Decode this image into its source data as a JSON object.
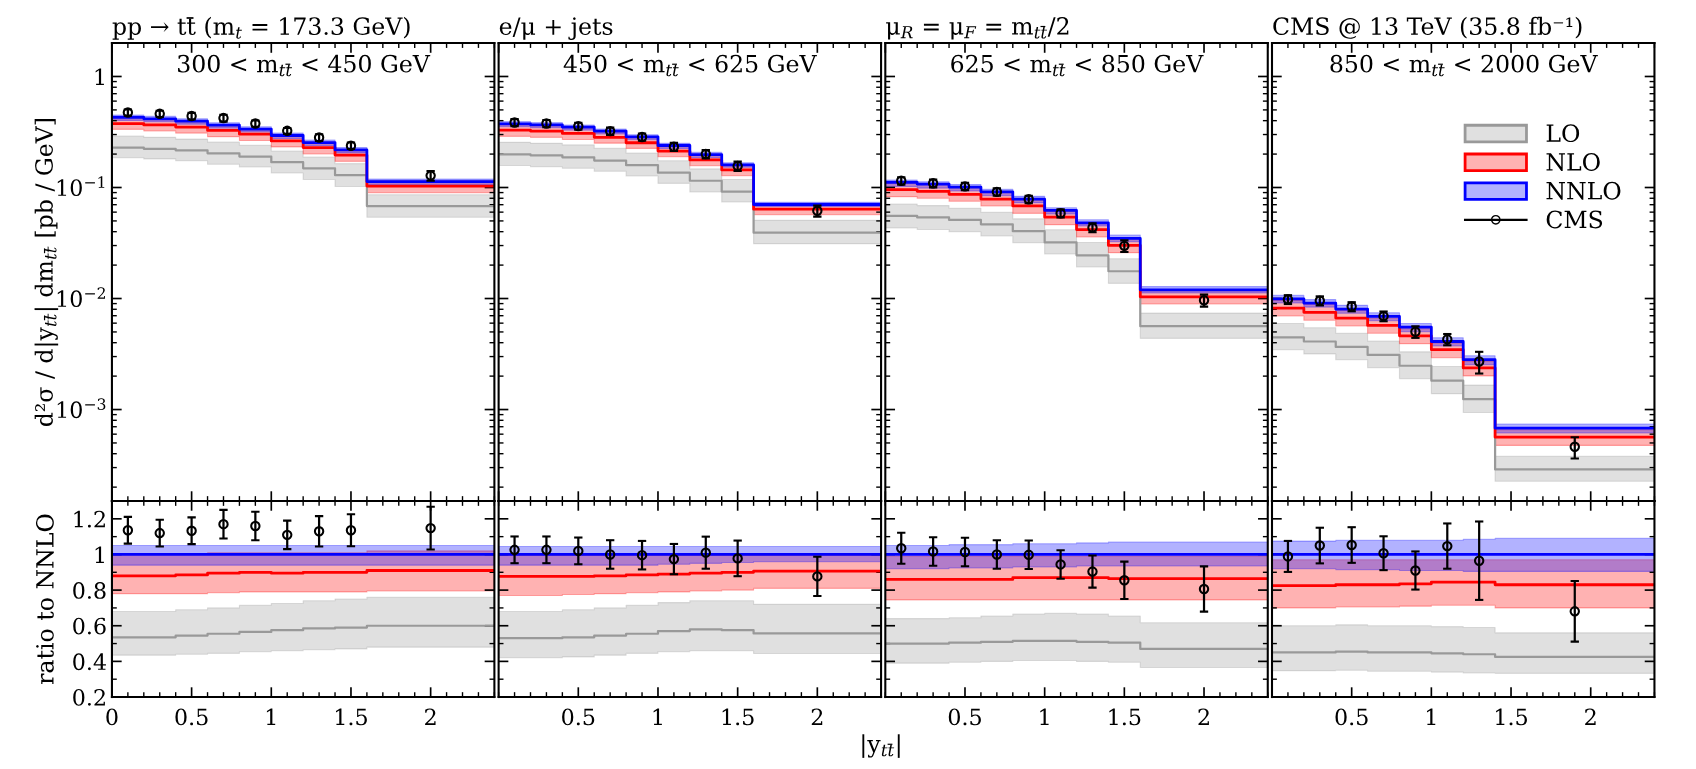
{
  "chart_data": [
    {
      "type": "step",
      "subtitle": "pp → tt̄ (m$_{t}$ = 173.3 GeV)",
      "title": "300 < m$_{tt̄}$ < 450 GeV",
      "ylabel": "d²σ / d|y$_{tt̄}$| dm$_{tt̄}$ [pb / GeV]",
      "log": "y",
      "xlim": [
        0,
        2.4
      ],
      "xticks": [
        0,
        0.5,
        1,
        1.5,
        2
      ],
      "ylim": [
        0.00015,
        2
      ],
      "yticks": [
        {
          "value": 0.001,
          "label": "10$^{−3}$"
        },
        {
          "value": 0.01,
          "label": "10$^{−2}$"
        },
        {
          "value": 0.1,
          "label": "10$^{−1}$"
        },
        {
          "value": 1,
          "label": "1"
        }
      ],
      "tick_labels": "y",
      "grid": false,
      "x": [
        0,
        0.2,
        0.4,
        0.6,
        0.8,
        1.0,
        1.2,
        1.4,
        1.6,
        2.4
      ],
      "series": [
        {
          "color": "#999999",
          "values": [
            0.229,
            0.223,
            0.216,
            0.203,
            0.19,
            0.169,
            0.149,
            0.129,
            0.068,
            0.068
          ],
          "lower": [
            0.186,
            0.181,
            0.174,
            0.162,
            0.153,
            0.135,
            0.118,
            0.102,
            0.054,
            0.054
          ],
          "upper": [
            0.291,
            0.283,
            0.273,
            0.256,
            0.24,
            0.213,
            0.188,
            0.164,
            0.086,
            0.086
          ]
        },
        {
          "color": "#ff0000",
          "values": [
            0.377,
            0.366,
            0.35,
            0.327,
            0.302,
            0.263,
            0.229,
            0.196,
            0.103,
            0.103
          ],
          "lower": [
            0.334,
            0.324,
            0.309,
            0.287,
            0.265,
            0.232,
            0.201,
            0.172,
            0.09,
            0.09
          ],
          "upper": [
            0.428,
            0.416,
            0.396,
            0.369,
            0.339,
            0.297,
            0.257,
            0.22,
            0.115,
            0.115
          ]
        },
        {
          "color": "#0000ff",
          "values": [
            0.428,
            0.416,
            0.396,
            0.365,
            0.336,
            0.294,
            0.254,
            0.218,
            0.113,
            0.113
          ],
          "lower": [
            0.402,
            0.391,
            0.372,
            0.343,
            0.316,
            0.276,
            0.239,
            0.205,
            0.106,
            0.106
          ],
          "upper": [
            0.449,
            0.437,
            0.416,
            0.383,
            0.353,
            0.309,
            0.267,
            0.229,
            0.119,
            0.119
          ]
        },
        {
          "type": "scatter",
          "color": "#000000",
          "marker": "circle",
          "x": [
            0.1,
            0.3,
            0.5,
            0.7,
            0.9,
            1.1,
            1.3,
            1.5,
            2.0
          ],
          "values": [
            0.474,
            0.461,
            0.44,
            0.422,
            0.377,
            0.324,
            0.282,
            0.238,
            0.128
          ],
          "errors": [
            0.03,
            0.03,
            0.03,
            0.03,
            0.025,
            0.02,
            0.02,
            0.016,
            0.013
          ]
        }
      ]
    },
    {
      "type": "step",
      "subtitle": "e/μ + jets",
      "title": "450 < m$_{tt̄}$ < 625 GeV",
      "log": "y",
      "xlim": [
        0,
        2.4
      ],
      "xticks": [
        0,
        0.5,
        1,
        1.5,
        2
      ],
      "ylim": [
        0.00015,
        2
      ],
      "yticks": [
        0.001,
        0.01,
        0.1,
        1
      ],
      "tick_labels": false,
      "grid": false,
      "x": [
        0,
        0.2,
        0.4,
        0.6,
        0.8,
        1.0,
        1.2,
        1.4,
        1.6,
        2.4
      ],
      "series": [
        {
          "color": "#999999",
          "values": [
            0.199,
            0.195,
            0.187,
            0.175,
            0.159,
            0.136,
            0.115,
            0.092,
            0.0392,
            0.0392
          ],
          "lower": [
            0.158,
            0.154,
            0.149,
            0.14,
            0.127,
            0.109,
            0.091,
            0.074,
            0.0312,
            0.0312
          ],
          "upper": [
            0.255,
            0.25,
            0.242,
            0.225,
            0.204,
            0.174,
            0.147,
            0.118,
            0.0506,
            0.0506
          ]
        },
        {
          "color": "#ff0000",
          "values": [
            0.329,
            0.322,
            0.307,
            0.283,
            0.253,
            0.213,
            0.177,
            0.144,
            0.0638,
            0.0638
          ],
          "lower": [
            0.289,
            0.283,
            0.271,
            0.251,
            0.225,
            0.189,
            0.157,
            0.128,
            0.0569,
            0.0569
          ],
          "upper": [
            0.373,
            0.365,
            0.348,
            0.321,
            0.285,
            0.238,
            0.197,
            0.159,
            0.07,
            0.07
          ]
        },
        {
          "color": "#0000ff",
          "values": [
            0.375,
            0.367,
            0.35,
            0.322,
            0.286,
            0.239,
            0.198,
            0.16,
            0.0703,
            0.0703
          ],
          "lower": [
            0.353,
            0.345,
            0.329,
            0.303,
            0.269,
            0.225,
            0.186,
            0.152,
            0.0675,
            0.0675
          ],
          "upper": [
            0.392,
            0.384,
            0.366,
            0.336,
            0.299,
            0.25,
            0.207,
            0.167,
            0.0735,
            0.0735
          ]
        },
        {
          "type": "scatter",
          "color": "#000000",
          "marker": "circle",
          "x": [
            0.1,
            0.3,
            0.5,
            0.7,
            0.9,
            1.1,
            1.3,
            1.5,
            2.0
          ],
          "values": [
            0.385,
            0.377,
            0.357,
            0.322,
            0.285,
            0.233,
            0.2,
            0.156,
            0.0617
          ],
          "errors": [
            0.028,
            0.028,
            0.026,
            0.024,
            0.021,
            0.02,
            0.017,
            0.015,
            0.007
          ]
        }
      ]
    },
    {
      "type": "step",
      "subtitle": "μ$_{R}$ = μ$_{F}$ = m$_{tt̄}$/2",
      "title": "625 < m$_{tt̄}$ < 850 GeV",
      "log": "y",
      "xlim": [
        0,
        2.4
      ],
      "xticks": [
        0,
        0.5,
        1,
        1.5,
        2
      ],
      "ylim": [
        0.00015,
        2
      ],
      "yticks": [
        0.001,
        0.01,
        0.1,
        1
      ],
      "tick_labels": false,
      "grid": false,
      "x": [
        0,
        0.2,
        0.4,
        0.6,
        0.8,
        1.0,
        1.2,
        1.4,
        1.6,
        2.4
      ],
      "series": [
        {
          "color": "#999999",
          "values": [
            0.0555,
            0.0537,
            0.051,
            0.0466,
            0.0404,
            0.032,
            0.0245,
            0.0176,
            0.00563,
            0.00563
          ],
          "lower": [
            0.0433,
            0.0419,
            0.0399,
            0.0366,
            0.0318,
            0.0252,
            0.0192,
            0.0137,
            0.00438,
            0.00438
          ],
          "upper": [
            0.071,
            0.0687,
            0.0651,
            0.0599,
            0.0522,
            0.0416,
            0.032,
            0.0228,
            0.00739,
            0.00739
          ]
        },
        {
          "color": "#ff0000",
          "values": [
            0.0955,
            0.0924,
            0.0868,
            0.0786,
            0.0683,
            0.054,
            0.0418,
            0.0301,
            0.01035,
            0.01035
          ],
          "lower": [
            0.0827,
            0.08,
            0.0752,
            0.0681,
            0.0585,
            0.0463,
            0.0358,
            0.0259,
            0.00892,
            0.00892
          ],
          "upper": [
            0.11,
            0.1063,
            0.0999,
            0.0905,
            0.0777,
            0.0615,
            0.0476,
            0.0345,
            0.01185,
            0.01185
          ]
        },
        {
          "color": "#0000ff",
          "values": [
            0.111,
            0.1074,
            0.1009,
            0.0914,
            0.0785,
            0.0621,
            0.0481,
            0.0348,
            0.01197,
            0.01197
          ],
          "lower": [
            0.102,
            0.0988,
            0.0933,
            0.0845,
            0.073,
            0.0578,
            0.045,
            0.0325,
            0.0112,
            0.0112
          ],
          "upper": [
            0.1166,
            0.1128,
            0.1065,
            0.0964,
            0.0832,
            0.0658,
            0.0512,
            0.0372,
            0.0128,
            0.0128
          ]
        },
        {
          "type": "scatter",
          "color": "#000000",
          "marker": "circle",
          "x": [
            0.1,
            0.3,
            0.5,
            0.7,
            0.9,
            1.1,
            1.3,
            1.5,
            2.0
          ],
          "values": [
            0.1149,
            0.1092,
            0.1023,
            0.0914,
            0.0783,
            0.0586,
            0.0435,
            0.0298,
            0.00965
          ],
          "errors": [
            0.009,
            0.009,
            0.008,
            0.007,
            0.006,
            0.005,
            0.004,
            0.0036,
            0.0012
          ]
        }
      ]
    },
    {
      "type": "step",
      "subtitle": "CMS @ 13 TeV (35.8 fb⁻¹)",
      "title": "850 < m$_{tt̄}$ < 2000 GeV",
      "log": "y",
      "xlim": [
        0,
        2.4
      ],
      "xticks": [
        0,
        0.5,
        1,
        1.5,
        2
      ],
      "ylim": [
        0.00015,
        2
      ],
      "yticks": [
        0.001,
        0.01,
        0.1,
        1
      ],
      "tick_labels": false,
      "grid": false,
      "legend": "top right",
      "x": [
        0,
        0.2,
        0.4,
        0.6,
        0.8,
        1.0,
        1.2,
        1.4,
        2.4
      ],
      "series": [
        {
          "name": "LO",
          "color": "#999999",
          "values": [
            0.00447,
            0.0041,
            0.00366,
            0.0031,
            0.00248,
            0.00182,
            0.00124,
            0.000289,
            0.000289
          ],
          "lower": [
            0.00346,
            0.00317,
            0.00281,
            0.00238,
            0.0019,
            0.00139,
            0.00094,
            0.000226,
            0.000226
          ],
          "upper": [
            0.00596,
            0.00546,
            0.00486,
            0.00413,
            0.00331,
            0.00244,
            0.00166,
            0.00038,
            0.00038
          ]
        },
        {
          "name": "NLO",
          "color": "#ff0000",
          "values": [
            0.00819,
            0.00751,
            0.00667,
            0.00572,
            0.00461,
            0.00346,
            0.00237,
            0.000564,
            0.000564
          ],
          "lower": [
            0.00695,
            0.00637,
            0.00567,
            0.00486,
            0.00392,
            0.00293,
            0.00201,
            0.000475,
            0.000475
          ],
          "upper": [
            0.00963,
            0.00883,
            0.0078,
            0.00668,
            0.00535,
            0.00398,
            0.00273,
            0.000659,
            0.000659
          ]
        },
        {
          "name": "NNLO",
          "color": "#0000ff",
          "values": [
            0.00993,
            0.0091,
            0.00804,
            0.00689,
            0.00552,
            0.0041,
            0.00281,
            0.000679,
            0.000679
          ],
          "lower": [
            0.00914,
            0.00837,
            0.00736,
            0.0063,
            0.00502,
            0.00373,
            0.00254,
            0.000615,
            0.000615
          ],
          "upper": [
            0.01067,
            0.00978,
            0.00868,
            0.00744,
            0.00596,
            0.00443,
            0.00305,
            0.00074,
            0.00074
          ]
        },
        {
          "name": "CMS",
          "type": "scatter",
          "color": "#000000",
          "marker": "circle",
          "x": [
            0.1,
            0.3,
            0.5,
            0.7,
            0.9,
            1.1,
            1.3,
            1.9
          ],
          "values": [
            0.00982,
            0.00956,
            0.00847,
            0.00694,
            0.00502,
            0.00429,
            0.00271,
            0.000462
          ],
          "errors": [
            0.0009,
            0.0009,
            0.0008,
            0.0007,
            0.0006,
            0.0005,
            0.0006,
            0.0001
          ]
        }
      ]
    },
    {
      "type": "step",
      "ylabel": "ratio to NNLO",
      "xlim": [
        0,
        2.4
      ],
      "xticks": [
        0,
        0.5,
        1,
        1.5,
        2
      ],
      "ylim": [
        0.2,
        1.3
      ],
      "yticks": [
        0.2,
        0.4,
        0.6,
        0.8,
        1,
        1.2
      ],
      "grid": false,
      "x": [
        0,
        0.2,
        0.4,
        0.6,
        0.8,
        1.0,
        1.2,
        1.4,
        1.6,
        2.4
      ],
      "series": [
        {
          "color": "#999999",
          "values": [
            0.535,
            0.535,
            0.545,
            0.555,
            0.565,
            0.575,
            0.585,
            0.59,
            0.6,
            0.6
          ],
          "lower": [
            0.435,
            0.435,
            0.44,
            0.445,
            0.455,
            0.46,
            0.465,
            0.47,
            0.48,
            0.48
          ],
          "upper": [
            0.68,
            0.68,
            0.69,
            0.7,
            0.715,
            0.725,
            0.74,
            0.75,
            0.76,
            0.76
          ]
        },
        {
          "color": "#ff0000",
          "values": [
            0.88,
            0.88,
            0.885,
            0.895,
            0.9,
            0.895,
            0.9,
            0.9,
            0.91,
            0.91
          ],
          "lower": [
            0.78,
            0.78,
            0.78,
            0.785,
            0.79,
            0.79,
            0.79,
            0.79,
            0.795,
            0.795
          ],
          "upper": [
            1.0,
            1.0,
            1.0,
            1.01,
            1.01,
            1.01,
            1.01,
            1.01,
            1.02,
            1.02
          ]
        },
        {
          "color": "#0000ff",
          "values": [
            1,
            1,
            1,
            1,
            1,
            1,
            1,
            1,
            1,
            1
          ],
          "lower": [
            0.94,
            0.94,
            0.94,
            0.94,
            0.94,
            0.94,
            0.94,
            0.94,
            0.94,
            0.94
          ],
          "upper": [
            1.05,
            1.05,
            1.05,
            1.05,
            1.05,
            1.05,
            1.05,
            1.05,
            1.05,
            1.05
          ]
        },
        {
          "type": "scatter",
          "color": "#000000",
          "marker": "circle",
          "x": [
            0.1,
            0.3,
            0.5,
            0.7,
            0.9,
            1.1,
            1.3,
            1.5,
            2.0
          ],
          "values": [
            1.136,
            1.12,
            1.133,
            1.17,
            1.16,
            1.11,
            1.13,
            1.136,
            1.148
          ],
          "errors": [
            0.075,
            0.075,
            0.075,
            0.08,
            0.08,
            0.08,
            0.085,
            0.09,
            0.12
          ]
        }
      ]
    },
    {
      "type": "step",
      "xlabel": "|y$_{tt̄}$|",
      "xlim": [
        0,
        2.4
      ],
      "xticks": [
        0.5,
        1,
        1.5,
        2
      ],
      "ylim": [
        0.2,
        1.3
      ],
      "yticks": [
        0.2,
        0.4,
        0.6,
        0.8,
        1,
        1.2
      ],
      "tick_labels": "x",
      "grid": false,
      "x": [
        0,
        0.2,
        0.4,
        0.6,
        0.8,
        1.0,
        1.2,
        1.4,
        1.6,
        2.4
      ],
      "series": [
        {
          "color": "#999999",
          "values": [
            0.53,
            0.53,
            0.535,
            0.545,
            0.555,
            0.57,
            0.58,
            0.575,
            0.557,
            0.557
          ],
          "lower": [
            0.42,
            0.42,
            0.425,
            0.435,
            0.445,
            0.455,
            0.46,
            0.46,
            0.444,
            0.444
          ],
          "upper": [
            0.68,
            0.68,
            0.69,
            0.7,
            0.715,
            0.73,
            0.74,
            0.74,
            0.72,
            0.72
          ]
        },
        {
          "color": "#ff0000",
          "values": [
            0.877,
            0.877,
            0.877,
            0.88,
            0.885,
            0.89,
            0.895,
            0.9,
            0.907,
            0.907
          ],
          "lower": [
            0.77,
            0.77,
            0.775,
            0.78,
            0.785,
            0.79,
            0.795,
            0.8,
            0.81,
            0.81
          ],
          "upper": [
            0.995,
            0.995,
            0.995,
            0.995,
            0.995,
            0.995,
            0.995,
            0.995,
            0.995,
            0.995
          ]
        },
        {
          "color": "#0000ff",
          "values": [
            1,
            1,
            1,
            1,
            1,
            1,
            1,
            1,
            1,
            1
          ],
          "lower": [
            0.94,
            0.94,
            0.94,
            0.94,
            0.94,
            0.945,
            0.95,
            0.955,
            0.96,
            0.96
          ],
          "upper": [
            1.045,
            1.045,
            1.045,
            1.045,
            1.045,
            1.045,
            1.045,
            1.045,
            1.045,
            1.045
          ]
        },
        {
          "type": "scatter",
          "color": "#000000",
          "marker": "circle",
          "x": [
            0.1,
            0.3,
            0.5,
            0.7,
            0.9,
            1.1,
            1.3,
            1.5,
            2.0
          ],
          "values": [
            1.026,
            1.026,
            1.02,
            1.0,
            0.996,
            0.974,
            1.01,
            0.978,
            0.877
          ],
          "errors": [
            0.075,
            0.075,
            0.075,
            0.08,
            0.08,
            0.085,
            0.09,
            0.1,
            0.11
          ]
        }
      ]
    },
    {
      "type": "step",
      "xlim": [
        0,
        2.4
      ],
      "xticks": [
        0.5,
        1,
        1.5,
        2
      ],
      "ylim": [
        0.2,
        1.3
      ],
      "yticks": [
        0.2,
        0.4,
        0.6,
        0.8,
        1,
        1.2
      ],
      "tick_labels": "x",
      "grid": false,
      "x": [
        0,
        0.2,
        0.4,
        0.6,
        0.8,
        1.0,
        1.2,
        1.4,
        1.6,
        2.4
      ],
      "series": [
        {
          "color": "#999999",
          "values": [
            0.5,
            0.5,
            0.505,
            0.51,
            0.515,
            0.515,
            0.51,
            0.505,
            0.47,
            0.47
          ],
          "lower": [
            0.39,
            0.39,
            0.395,
            0.4,
            0.405,
            0.405,
            0.4,
            0.395,
            0.366,
            0.366
          ],
          "upper": [
            0.64,
            0.64,
            0.645,
            0.655,
            0.665,
            0.67,
            0.665,
            0.655,
            0.617,
            0.617
          ]
        },
        {
          "color": "#ff0000",
          "values": [
            0.86,
            0.86,
            0.86,
            0.86,
            0.87,
            0.87,
            0.87,
            0.865,
            0.865,
            0.865
          ],
          "lower": [
            0.745,
            0.745,
            0.745,
            0.745,
            0.745,
            0.745,
            0.745,
            0.745,
            0.745,
            0.745
          ],
          "upper": [
            0.99,
            0.99,
            0.99,
            0.99,
            0.99,
            0.99,
            0.99,
            0.99,
            0.99,
            0.99
          ]
        },
        {
          "color": "#0000ff",
          "values": [
            1,
            1,
            1,
            1,
            1,
            1,
            1,
            1,
            1,
            1
          ],
          "lower": [
            0.92,
            0.92,
            0.925,
            0.925,
            0.93,
            0.93,
            0.935,
            0.935,
            0.935,
            0.935
          ],
          "upper": [
            1.05,
            1.05,
            1.055,
            1.055,
            1.06,
            1.06,
            1.065,
            1.07,
            1.07,
            1.07
          ]
        },
        {
          "type": "scatter",
          "color": "#000000",
          "marker": "circle",
          "x": [
            0.1,
            0.3,
            0.5,
            0.7,
            0.9,
            1.1,
            1.3,
            1.5,
            2.0
          ],
          "values": [
            1.035,
            1.017,
            1.014,
            1.0,
            0.998,
            0.944,
            0.904,
            0.855,
            0.806
          ],
          "errors": [
            0.087,
            0.08,
            0.08,
            0.08,
            0.08,
            0.08,
            0.09,
            0.105,
            0.127
          ]
        }
      ]
    },
    {
      "type": "step",
      "xlim": [
        0,
        2.4
      ],
      "xticks": [
        0.5,
        1,
        1.5,
        2
      ],
      "ylim": [
        0.2,
        1.3
      ],
      "yticks": [
        0.2,
        0.4,
        0.6,
        0.8,
        1,
        1.2
      ],
      "tick_labels": "x",
      "grid": false,
      "x": [
        0,
        0.2,
        0.4,
        0.6,
        0.8,
        1.0,
        1.2,
        1.4,
        2.4
      ],
      "series": [
        {
          "color": "#999999",
          "values": [
            0.45,
            0.45,
            0.455,
            0.45,
            0.45,
            0.445,
            0.44,
            0.425,
            0.425
          ],
          "lower": [
            0.348,
            0.348,
            0.35,
            0.345,
            0.345,
            0.34,
            0.335,
            0.333,
            0.333
          ],
          "upper": [
            0.6,
            0.6,
            0.605,
            0.6,
            0.6,
            0.595,
            0.59,
            0.56,
            0.56
          ]
        },
        {
          "color": "#ff0000",
          "values": [
            0.825,
            0.825,
            0.83,
            0.83,
            0.835,
            0.845,
            0.845,
            0.83,
            0.83
          ],
          "lower": [
            0.7,
            0.7,
            0.705,
            0.705,
            0.71,
            0.715,
            0.715,
            0.7,
            0.7
          ],
          "upper": [
            0.97,
            0.97,
            0.97,
            0.97,
            0.97,
            0.97,
            0.97,
            0.97,
            0.97
          ]
        },
        {
          "color": "#0000ff",
          "values": [
            1,
            1,
            1,
            1,
            1,
            1,
            1,
            1,
            1
          ],
          "lower": [
            0.92,
            0.92,
            0.915,
            0.915,
            0.91,
            0.91,
            0.905,
            0.905,
            0.905
          ],
          "upper": [
            1.075,
            1.075,
            1.08,
            1.08,
            1.08,
            1.08,
            1.085,
            1.09,
            1.09
          ]
        },
        {
          "type": "scatter",
          "color": "#000000",
          "marker": "circle",
          "x": [
            0.1,
            0.3,
            0.5,
            0.7,
            0.9,
            1.1,
            1.3,
            1.9
          ],
          "values": [
            0.989,
            1.05,
            1.053,
            1.007,
            0.91,
            1.047,
            0.965,
            0.681
          ],
          "errors": [
            0.087,
            0.1,
            0.1,
            0.095,
            0.107,
            0.127,
            0.22,
            0.17
          ]
        }
      ]
    }
  ]
}
